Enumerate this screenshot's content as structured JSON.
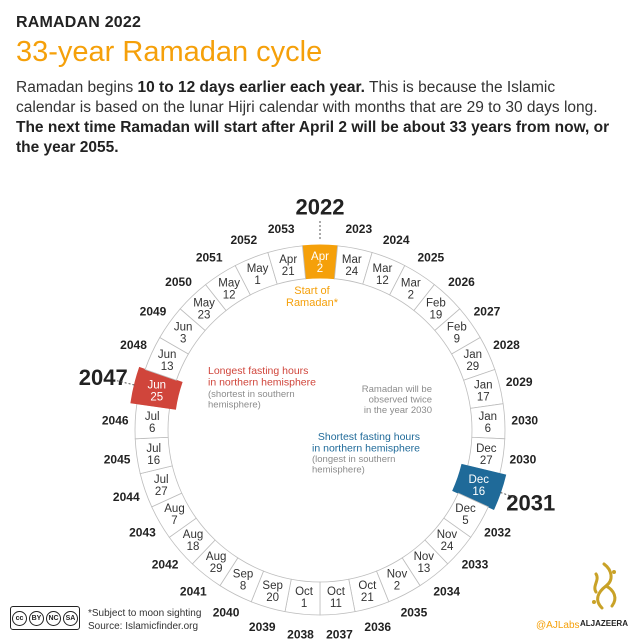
{
  "header": {
    "kicker": "RAMADAN 2022",
    "title": "33-year Ramadan cycle",
    "lede_parts": [
      {
        "text": "Ramadan begins ",
        "bold": false
      },
      {
        "text": "10 to 12 days earlier each year.",
        "bold": true
      },
      {
        "text": " This is because the Islamic calendar is based on the lunar Hijri calendar with months that are 29 to 30 days long. ",
        "bold": false
      },
      {
        "text": "The next time Ramadan will start after April 2 will be about 33 years from now, or the year 2055.",
        "bold": true
      }
    ]
  },
  "cycle": [
    {
      "year": "2022",
      "date": [
        "Apr",
        "2"
      ],
      "highlight": "start"
    },
    {
      "year": "2023",
      "date": [
        "Mar",
        "24"
      ]
    },
    {
      "year": "2024",
      "date": [
        "Mar",
        "12"
      ]
    },
    {
      "year": "2025",
      "date": [
        "Mar",
        "2"
      ]
    },
    {
      "year": "2026",
      "date": [
        "Feb",
        "19"
      ]
    },
    {
      "year": "2027",
      "date": [
        "Feb",
        "9"
      ]
    },
    {
      "year": "2028",
      "date": [
        "Jan",
        "29"
      ]
    },
    {
      "year": "2029",
      "date": [
        "Jan",
        "17"
      ]
    },
    {
      "year": "2030",
      "date": [
        "Jan",
        "6"
      ]
    },
    {
      "year": "2030",
      "date": [
        "Dec",
        "27"
      ]
    },
    {
      "year": "2031",
      "date": [
        "Dec",
        "16"
      ],
      "highlight": "shortest"
    },
    {
      "year": "2032",
      "date": [
        "Dec",
        "5"
      ]
    },
    {
      "year": "2033",
      "date": [
        "Nov",
        "24"
      ]
    },
    {
      "year": "2034",
      "date": [
        "Nov",
        "13"
      ]
    },
    {
      "year": "2035",
      "date": [
        "Nov",
        "2"
      ]
    },
    {
      "year": "2036",
      "date": [
        "Oct",
        "21"
      ]
    },
    {
      "year": "2037",
      "date": [
        "Oct",
        "11"
      ]
    },
    {
      "year": "2038",
      "date": [
        "Oct",
        "1"
      ]
    },
    {
      "year": "2039",
      "date": [
        "Sep",
        "20"
      ]
    },
    {
      "year": "2040",
      "date": [
        "Sep",
        "8"
      ]
    },
    {
      "year": "2041",
      "date": [
        "Aug",
        "29"
      ]
    },
    {
      "year": "2042",
      "date": [
        "Aug",
        "18"
      ]
    },
    {
      "year": "2043",
      "date": [
        "Aug",
        "7"
      ]
    },
    {
      "year": "2044",
      "date": [
        "Jul",
        "27"
      ]
    },
    {
      "year": "2045",
      "date": [
        "Jul",
        "16"
      ]
    },
    {
      "year": "2046",
      "date": [
        "Jul",
        "6"
      ]
    },
    {
      "year": "2047",
      "date": [
        "Jun",
        "25"
      ],
      "highlight": "longest"
    },
    {
      "year": "2048",
      "date": [
        "Jun",
        "13"
      ]
    },
    {
      "year": "2049",
      "date": [
        "Jun",
        "3"
      ]
    },
    {
      "year": "2050",
      "date": [
        "May",
        "23"
      ]
    },
    {
      "year": "2051",
      "date": [
        "May",
        "12"
      ]
    },
    {
      "year": "2052",
      "date": [
        "May",
        "1"
      ]
    },
    {
      "year": "2053",
      "date": [
        "Apr",
        "21"
      ]
    }
  ],
  "annotations": {
    "start": [
      "Start of",
      "Ramadan*"
    ],
    "longest_title": [
      "Longest fasting hours",
      "in northern hemisphere"
    ],
    "longest_sub": [
      "(shortest in southern",
      "hemisphere)"
    ],
    "shortest_title": [
      "Shortest fasting hours",
      "in northern hemisphere"
    ],
    "shortest_sub": [
      "(longest in southern",
      "hemisphere)"
    ],
    "twice": [
      "Ramadan will be",
      "observed twice",
      "in the year 2030"
    ]
  },
  "colors": {
    "start": "#f5a00a",
    "longest": "#d0453b",
    "shortest": "#1f6a99",
    "ring_border": "#bdbdbd",
    "text": "#222222",
    "muted": "#8c8c8c"
  },
  "footer": {
    "note": "*Subject to moon sighting",
    "source": "Source: Islamicfinder.org",
    "credit": "@AJLabs",
    "brand": "ALJAZEERA",
    "license": [
      "BY",
      "NC",
      "SA"
    ],
    "license_mark": "cc",
    "logo_icon": "aljazeera-calligraphy-logo-icon"
  }
}
